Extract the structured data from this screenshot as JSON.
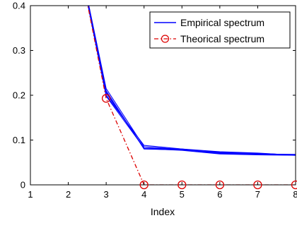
{
  "chart_data": {
    "type": "line",
    "title": "",
    "xlabel": "Index",
    "ylabel": "",
    "xlim": [
      1,
      8
    ],
    "ylim": [
      0,
      0.4
    ],
    "xticks": [
      "1",
      "2",
      "3",
      "4",
      "5",
      "6",
      "7",
      "8"
    ],
    "yticks": [
      "0",
      "0.1",
      "0.2",
      "0.3",
      "0.4"
    ],
    "grid": false,
    "legend_position": "top-right",
    "series": [
      {
        "name": "Empirical spectrum",
        "style": "solid",
        "color": "#0000ff",
        "x": [
          2,
          3,
          4,
          5,
          6,
          7,
          8
        ],
        "runs": [
          [
            0.62,
            0.205,
            0.082,
            0.08,
            0.074,
            0.071,
            0.066
          ],
          [
            0.62,
            0.21,
            0.08,
            0.078,
            0.072,
            0.07,
            0.067
          ],
          [
            0.62,
            0.215,
            0.085,
            0.079,
            0.07,
            0.069,
            0.068
          ],
          [
            0.62,
            0.2,
            0.088,
            0.08,
            0.071,
            0.068,
            0.066
          ],
          [
            0.62,
            0.198,
            0.082,
            0.078,
            0.073,
            0.07,
            0.067
          ],
          [
            0.62,
            0.208,
            0.081,
            0.077,
            0.069,
            0.067,
            0.066
          ]
        ]
      },
      {
        "name": "Theorical spectrum",
        "style": "dash-dot",
        "marker": "circle",
        "color": "#dd0000",
        "x": [
          2,
          3,
          4,
          5,
          6,
          7,
          8
        ],
        "values": [
          0.62,
          0.193,
          0,
          0,
          0,
          0,
          0
        ]
      }
    ]
  }
}
